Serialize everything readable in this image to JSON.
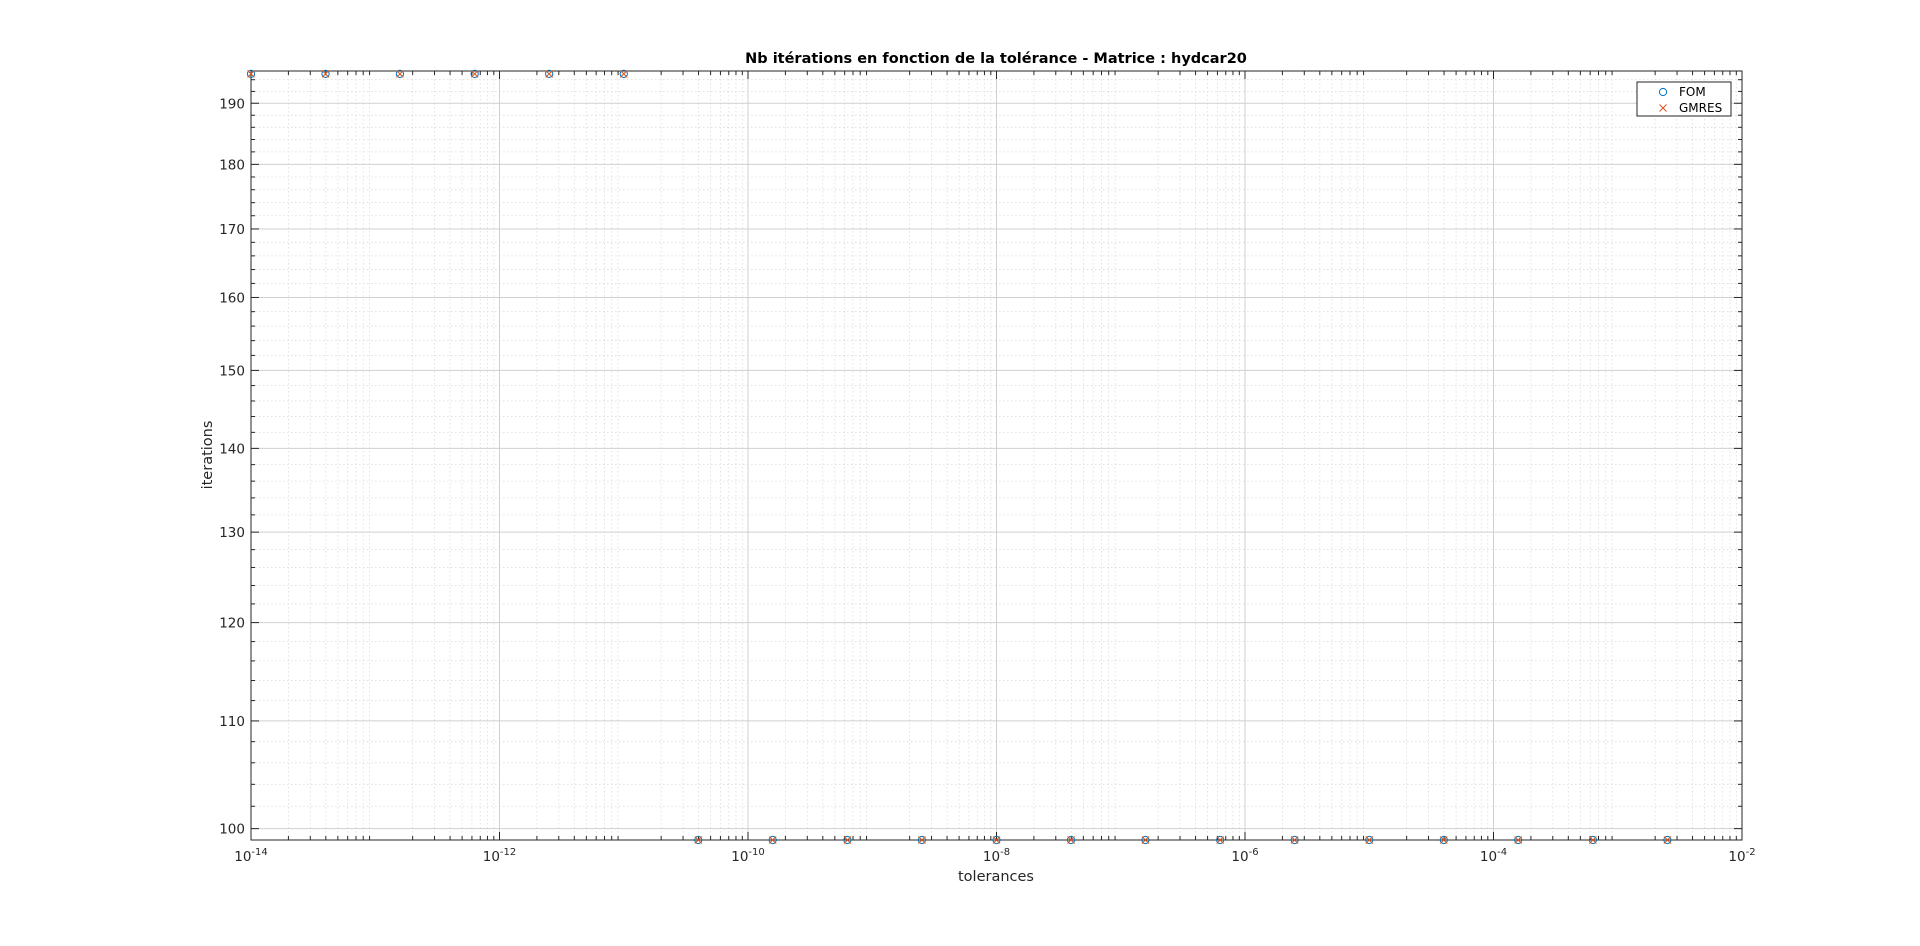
{
  "chart_data": {
    "type": "scatter",
    "title": "Nb itérations en fonction de la tolérance - Matrice : hydcar20",
    "xlabel": "tolerances",
    "ylabel": "iterations",
    "xscale": "log",
    "yscale": "log",
    "xlim": [
      1e-14,
      0.01
    ],
    "ylim": [
      99,
      195.5
    ],
    "x_ticks": [
      {
        "value": 1e-14,
        "mantissa": "10",
        "exponent": "-14"
      },
      {
        "value": 1e-12,
        "mantissa": "10",
        "exponent": "-12"
      },
      {
        "value": 1e-10,
        "mantissa": "10",
        "exponent": "-10"
      },
      {
        "value": 1e-08,
        "mantissa": "10",
        "exponent": "-8"
      },
      {
        "value": 1e-06,
        "mantissa": "10",
        "exponent": "-6"
      },
      {
        "value": 0.0001,
        "mantissa": "10",
        "exponent": "-4"
      },
      {
        "value": 0.01,
        "mantissa": "10",
        "exponent": "-2"
      }
    ],
    "y_ticks": [
      {
        "value": 100,
        "label": "100"
      },
      {
        "value": 110,
        "label": "110"
      },
      {
        "value": 120,
        "label": "120"
      },
      {
        "value": 130,
        "label": "130"
      },
      {
        "value": 140,
        "label": "140"
      },
      {
        "value": 150,
        "label": "150"
      },
      {
        "value": 160,
        "label": "160"
      },
      {
        "value": 170,
        "label": "170"
      },
      {
        "value": 180,
        "label": "180"
      },
      {
        "value": 190,
        "label": "190"
      }
    ],
    "grid": true,
    "minor_grid": true,
    "legend_position": "top-right",
    "series": [
      {
        "name": "FOM",
        "marker": "circle",
        "color": "#0072bd",
        "x": [
          1e-14,
          3.98e-14,
          1.58e-13,
          6.31e-13,
          2.51e-12,
          1e-11,
          3.98e-11,
          1.58e-10,
          6.31e-10,
          2.51e-09,
          1e-08,
          3.98e-08,
          1.58e-07,
          6.31e-07,
          2.51e-06,
          1e-05,
          3.98e-05,
          0.000158,
          0.000631,
          0.00251
        ],
        "values": [
          195,
          195,
          195,
          195,
          195,
          195,
          99,
          99,
          99,
          99,
          99,
          99,
          99,
          99,
          99,
          99,
          99,
          99,
          99,
          99
        ]
      },
      {
        "name": "GMRES",
        "marker": "x",
        "color": "#d95319",
        "x": [
          1e-14,
          3.98e-14,
          1.58e-13,
          6.31e-13,
          2.51e-12,
          1e-11,
          3.98e-11,
          1.58e-10,
          6.31e-10,
          2.51e-09,
          1e-08,
          3.98e-08,
          1.58e-07,
          6.31e-07,
          2.51e-06,
          1e-05,
          3.98e-05,
          0.000158,
          0.000631,
          0.00251
        ],
        "values": [
          195,
          195,
          195,
          195,
          195,
          195,
          99,
          99,
          99,
          99,
          99,
          99,
          99,
          99,
          99,
          99,
          99,
          99,
          99,
          99
        ]
      }
    ]
  }
}
